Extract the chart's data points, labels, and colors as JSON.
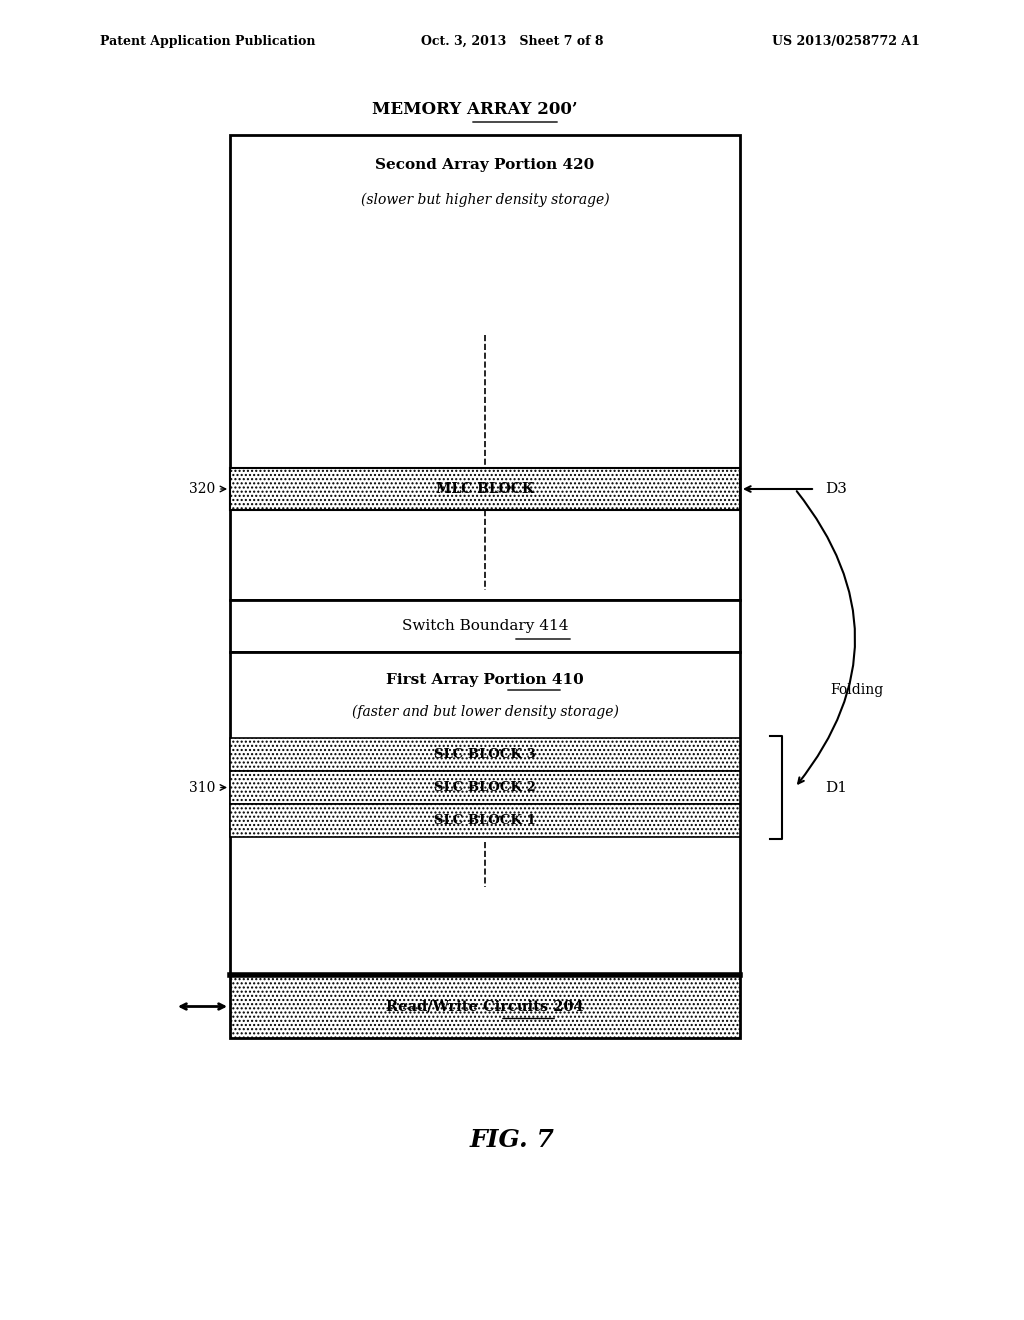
{
  "header_left": "Patent Application Publication",
  "header_mid": "Oct. 3, 2013   Sheet 7 of 8",
  "header_right": "US 2013/0258772 A1",
  "memory_array_label": "MEMORY ARRAY 200’",
  "second_array_title": "Second Array Portion 420",
  "second_array_subtitle": "(slower but higher density storage)",
  "mlc_block_label": "MLC BLOCK",
  "switch_boundary_label": "Switch Boundary 414",
  "first_array_title": "First Array Portion 410",
  "first_array_subtitle": "(faster and but lower density storage)",
  "slc_blocks": [
    "SLC BLOCK 3",
    "SLC BLOCK 2",
    "SLC BLOCK 1"
  ],
  "rw_circuits_label": "Read/Write Circuits 204",
  "label_320": "320",
  "label_310": "310",
  "label_D3": "D3",
  "label_D1": "D1",
  "label_folding": "Folding",
  "fig_label": "FIG. 7",
  "hatch_pattern": "....",
  "bg_color": "#ffffff",
  "box_edge_color": "#000000",
  "hatch_color": "#aaaaaa",
  "text_color": "#000000"
}
